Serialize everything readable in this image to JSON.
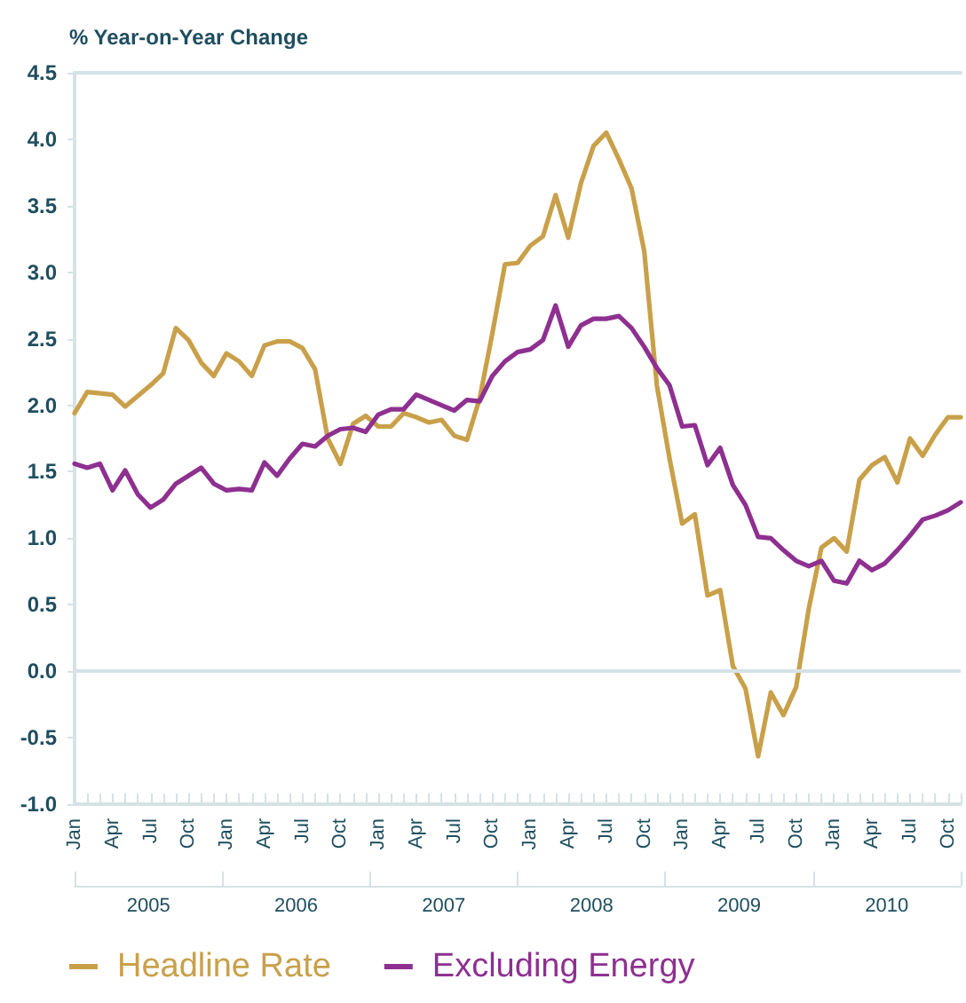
{
  "chart_data": {
    "type": "line",
    "ylabel": "% Year-on-Year Change",
    "categories": [
      "Jan",
      null,
      null,
      "Apr",
      null,
      null,
      "Jul",
      null,
      null,
      "Oct",
      null,
      null,
      "Jan",
      null,
      null,
      "Apr",
      null,
      null,
      "Jul",
      null,
      null,
      "Oct",
      null,
      null,
      "Jan",
      null,
      null,
      "Apr",
      null,
      null,
      "Jul",
      null,
      null,
      "Oct",
      null,
      null,
      "Jan",
      null,
      null,
      "Apr",
      null,
      null,
      "Jul",
      null,
      null,
      "Oct",
      null,
      null,
      "Jan",
      null,
      null,
      "Apr",
      null,
      null,
      "Jul",
      null,
      null,
      "Oct",
      null,
      null,
      "Jan",
      null,
      null,
      "Apr",
      null,
      null,
      "Jul",
      null,
      null,
      "Oct",
      null
    ],
    "annotations": [
      "2005",
      "2006",
      "2007",
      "2008",
      "2009",
      "2010"
    ],
    "series": [
      {
        "name": "Headline Rate",
        "color": "#c9a04a",
        "values": [
          1.94,
          2.1,
          2.09,
          2.08,
          1.99,
          2.07,
          2.15,
          2.24,
          2.58,
          2.49,
          2.32,
          2.22,
          2.39,
          2.33,
          2.22,
          2.45,
          2.48,
          2.48,
          2.43,
          2.27,
          1.75,
          1.56,
          1.86,
          1.92,
          1.84,
          1.84,
          1.94,
          1.91,
          1.87,
          1.89,
          1.77,
          1.74,
          2.05,
          2.54,
          3.06,
          3.07,
          3.2,
          3.27,
          3.58,
          3.26,
          3.67,
          3.95,
          4.05,
          3.85,
          3.63,
          3.16,
          2.15,
          1.6,
          1.11,
          1.18,
          0.57,
          0.61,
          0.04,
          -0.13,
          -0.64,
          -0.16,
          -0.33,
          -0.12,
          0.47,
          0.93,
          1.0,
          0.9,
          1.44,
          1.55,
          1.61,
          1.42,
          1.75,
          1.62,
          1.78,
          1.91,
          1.91
        ]
      },
      {
        "name": "Excluding Energy",
        "color": "#8e3090",
        "values": [
          1.56,
          1.53,
          1.56,
          1.36,
          1.51,
          1.33,
          1.23,
          1.29,
          1.41,
          1.47,
          1.53,
          1.41,
          1.36,
          1.37,
          1.36,
          1.57,
          1.47,
          1.6,
          1.71,
          1.69,
          1.77,
          1.82,
          1.83,
          1.8,
          1.93,
          1.97,
          1.97,
          2.08,
          2.04,
          2.0,
          1.96,
          2.04,
          2.03,
          2.22,
          2.33,
          2.4,
          2.42,
          2.49,
          2.75,
          2.44,
          2.6,
          2.65,
          2.65,
          2.67,
          2.58,
          2.44,
          2.28,
          2.15,
          1.84,
          1.85,
          1.55,
          1.68,
          1.4,
          1.25,
          1.01,
          1.0,
          0.91,
          0.83,
          0.79,
          0.83,
          0.68,
          0.66,
          0.83,
          0.76,
          0.81,
          0.91,
          1.02,
          1.14,
          1.17,
          1.21,
          1.27
        ]
      }
    ],
    "ylim": [
      -1,
      4.5
    ],
    "yticks": [
      {
        "value": -1,
        "label": "-1.0"
      },
      -0.5,
      {
        "value": 0,
        "label": "0.0"
      },
      0.5,
      {
        "value": 1,
        "label": "1.0"
      },
      1.5,
      {
        "value": 2,
        "label": "2.0"
      },
      2.5,
      {
        "value": 3,
        "label": "3.0"
      },
      3.5,
      {
        "value": 4,
        "label": "4.0"
      },
      4.5
    ],
    "ref_lines": [
      {
        "axis": "y",
        "value": 0
      }
    ],
    "grid": false,
    "legend": "bottom",
    "marker": "none",
    "line_style": "solid"
  }
}
